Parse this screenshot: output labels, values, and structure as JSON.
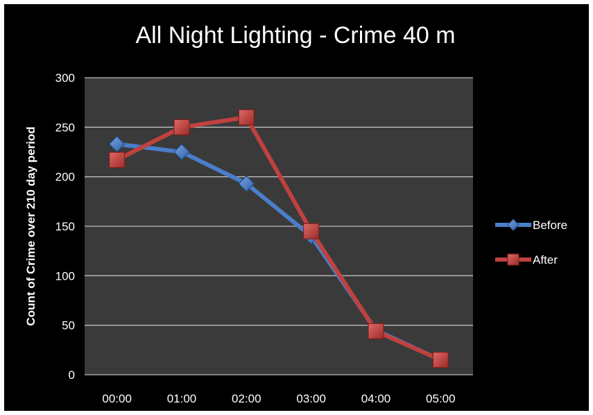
{
  "chart_data": {
    "type": "line",
    "title": "All Night Lighting - Crime 40 m",
    "xlabel": "",
    "ylabel": "Count of Crime over 210 day period",
    "categories": [
      "00:00",
      "01:00",
      "02:00",
      "03:00",
      "04:00",
      "05:00"
    ],
    "ylim": [
      0,
      300
    ],
    "yticks": [
      0,
      50,
      100,
      150,
      200,
      250,
      300
    ],
    "grid": true,
    "legend_position": "right",
    "plot_background": "#3a3a3a",
    "series": [
      {
        "name": "Before",
        "values": [
          233,
          225,
          193,
          140,
          45,
          15
        ],
        "color": "#4a7ec9",
        "marker": "diamond"
      },
      {
        "name": "After",
        "values": [
          217,
          250,
          260,
          145,
          44,
          15
        ],
        "color": "#c0413e",
        "marker": "square"
      }
    ]
  }
}
